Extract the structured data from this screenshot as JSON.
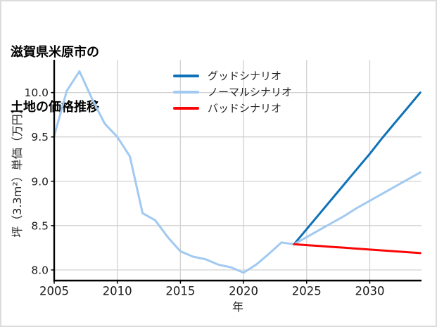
{
  "title": {
    "line1": "滋賀県米原市の",
    "line2": "土地の価格推移"
  },
  "colors": {
    "good": "#0e72b9",
    "normal": "#a1c9f1",
    "bad": "#fa0606",
    "grid": "#d2d2d2",
    "spine": "#000000",
    "tick_text": "#1a1a1a",
    "label_text": "#262626",
    "title_text": "#000000",
    "background": "#ffffff",
    "border": "#dcdcdc"
  },
  "chart_data": {
    "type": "line",
    "title": "滋賀県米原市の 土地の価格推移",
    "xlabel": "年",
    "ylabel": "坪（3.3m²）単価（万円）",
    "xlim": [
      2005,
      2034.1
    ],
    "ylim": [
      7.88,
      10.37
    ],
    "xticks": [
      2005,
      2010,
      2015,
      2020,
      2025,
      2030
    ],
    "yticks": [
      8.0,
      8.5,
      9.0,
      9.5,
      10.0
    ],
    "grid": true,
    "legend_position": "upper center inside, no frame",
    "series": [
      {
        "name": "グッドシナリオ",
        "color": "#0e72b9",
        "x": [
          2024,
          2025,
          2026,
          2027,
          2028,
          2029,
          2030,
          2031,
          2032,
          2033,
          2034
        ],
        "y": [
          8.29,
          8.46,
          8.63,
          8.8,
          8.97,
          9.14,
          9.31,
          9.49,
          9.66,
          9.83,
          10.0
        ]
      },
      {
        "name": "ノーマルシナリオ",
        "color": "#a1c9f1",
        "x": [
          2005,
          2006,
          2007,
          2008,
          2009,
          2010,
          2011,
          2012,
          2013,
          2014,
          2015,
          2016,
          2017,
          2018,
          2019,
          2020,
          2021,
          2022,
          2023,
          2024,
          2025,
          2026,
          2027,
          2028,
          2029,
          2030,
          2031,
          2032,
          2033,
          2034
        ],
        "y": [
          9.51,
          10.02,
          10.24,
          9.93,
          9.65,
          9.5,
          9.28,
          8.64,
          8.56,
          8.37,
          8.21,
          8.15,
          8.12,
          8.06,
          8.03,
          7.97,
          8.06,
          8.18,
          8.31,
          8.29,
          8.37,
          8.45,
          8.53,
          8.61,
          8.7,
          8.78,
          8.86,
          8.94,
          9.02,
          9.1
        ]
      },
      {
        "name": "バッドシナリオ",
        "color": "#fa0606",
        "x": [
          2024,
          2025,
          2026,
          2027,
          2028,
          2029,
          2030,
          2031,
          2032,
          2033,
          2034
        ],
        "y": [
          8.29,
          8.28,
          8.27,
          8.26,
          8.25,
          8.24,
          8.23,
          8.22,
          8.21,
          8.2,
          8.19
        ]
      }
    ]
  },
  "legend": {
    "items": [
      {
        "label": "グッドシナリオ"
      },
      {
        "label": "ノーマルシナリオ"
      },
      {
        "label": "バッドシナリオ"
      }
    ]
  }
}
